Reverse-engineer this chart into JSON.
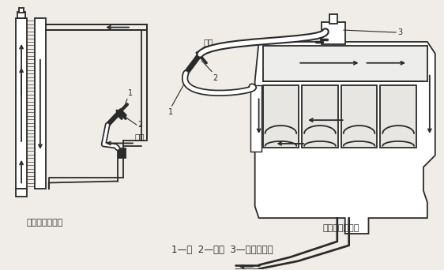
{
  "bg_color": "#f0ede8",
  "line_color": "#2a2a2a",
  "caption": "1—水  2—空气  3—拆下节温器",
  "label_left": "逆流冲洗散热器",
  "label_right": "逆流冲洗发动机",
  "spray_gun": "噴枪",
  "n1": "1",
  "n2": "2",
  "n3": "3"
}
